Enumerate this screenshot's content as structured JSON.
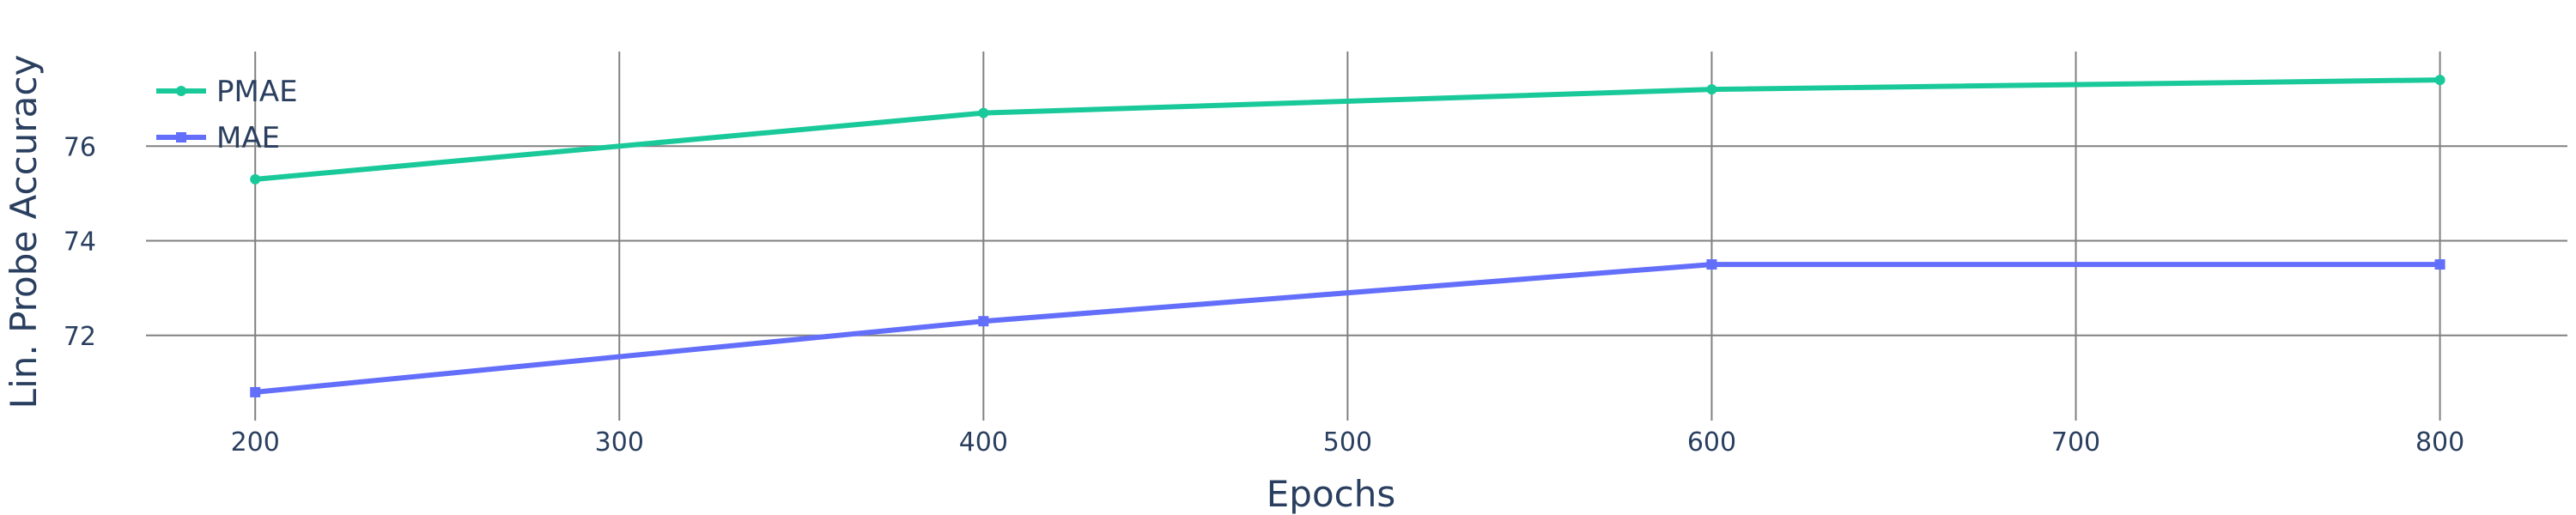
{
  "chart_data": {
    "type": "line",
    "title": "",
    "xlabel": "Epochs",
    "ylabel": "Lin. Probe Accuracy",
    "x": [
      200,
      400,
      600,
      800
    ],
    "xlim": [
      170,
      835
    ],
    "ylim": [
      70.2,
      78.0
    ],
    "xticks": [
      200,
      300,
      400,
      500,
      600,
      700,
      800
    ],
    "yticks": [
      72,
      74,
      76
    ],
    "grid": true,
    "legend_position": "top-left",
    "series": [
      {
        "name": "PMAE",
        "values": [
          75.3,
          76.7,
          77.2,
          77.4
        ],
        "color": "#19c99a",
        "marker": "circle"
      },
      {
        "name": "MAE",
        "values": [
          70.8,
          72.3,
          73.5,
          73.5
        ],
        "color": "#636efa",
        "marker": "square"
      }
    ]
  }
}
